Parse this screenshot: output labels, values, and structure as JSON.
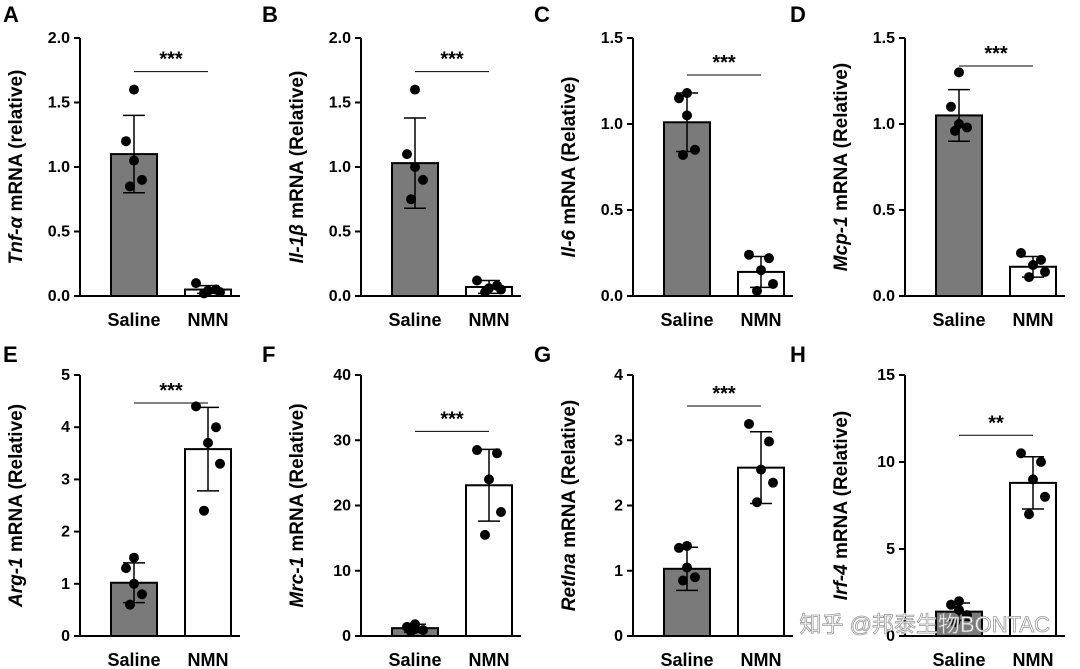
{
  "watermark": "知乎 @邦泰生物BONTAC",
  "colors": {
    "saline_bar": "#7a7a7a",
    "nmn_bar": "#ffffff",
    "stroke": "#000000",
    "dot": "#000000"
  },
  "chart_data": [
    {
      "panel": "A",
      "type": "bar",
      "gene": "Tnf-α",
      "ylabel_suffix": " mRNA (relative)",
      "categories": [
        "Saline",
        "NMN"
      ],
      "values": [
        1.1,
        0.05
      ],
      "error": [
        0.3,
        0.03
      ],
      "points": [
        [
          1.6,
          1.2,
          1.05,
          0.9,
          0.85
        ],
        [
          0.1,
          0.05,
          0.04,
          0.03,
          0.02
        ]
      ],
      "ylim": [
        0,
        2.0
      ],
      "yticks": [
        "0.0",
        "0.5",
        "1.0",
        "1.5",
        "2.0"
      ],
      "significance": "***"
    },
    {
      "panel": "B",
      "type": "bar",
      "gene": "Il-1β",
      "ylabel_suffix": " mRNA (Relative)",
      "categories": [
        "Saline",
        "NMN"
      ],
      "values": [
        1.03,
        0.07
      ],
      "error": [
        0.35,
        0.05
      ],
      "points": [
        [
          1.6,
          1.1,
          1.0,
          0.9,
          0.75
        ],
        [
          0.12,
          0.08,
          0.06,
          0.05,
          0.03
        ]
      ],
      "ylim": [
        0,
        2.0
      ],
      "yticks": [
        "0.0",
        "0.5",
        "1.0",
        "1.5",
        "2.0"
      ],
      "significance": "***"
    },
    {
      "panel": "C",
      "type": "bar",
      "gene": "Il-6",
      "ylabel_suffix": " mRNA (Relative)",
      "categories": [
        "Saline",
        "NMN"
      ],
      "values": [
        1.01,
        0.14
      ],
      "error": [
        0.17,
        0.09
      ],
      "points": [
        [
          1.18,
          1.15,
          1.05,
          0.85,
          0.82
        ],
        [
          0.24,
          0.22,
          0.15,
          0.07,
          0.03
        ]
      ],
      "ylim": [
        0,
        1.5
      ],
      "yticks": [
        "0.0",
        "0.5",
        "1.0",
        "1.5"
      ],
      "significance": "***"
    },
    {
      "panel": "D",
      "type": "bar",
      "gene": "Mcp-1",
      "ylabel_suffix": " mRNA (Relative)",
      "categories": [
        "Saline",
        "NMN"
      ],
      "values": [
        1.05,
        0.17
      ],
      "error": [
        0.15,
        0.06
      ],
      "points": [
        [
          1.3,
          1.1,
          1.0,
          0.98,
          0.96
        ],
        [
          0.25,
          0.21,
          0.18,
          0.14,
          0.11
        ]
      ],
      "ylim": [
        0,
        1.5
      ],
      "yticks": [
        "0.0",
        "0.5",
        "1.0",
        "1.5"
      ],
      "significance": "***"
    },
    {
      "panel": "E",
      "type": "bar",
      "gene": "Arg-1",
      "ylabel_suffix": " mRNA (Relative)",
      "categories": [
        "Saline",
        "NMN"
      ],
      "values": [
        1.02,
        3.58
      ],
      "error": [
        0.38,
        0.8
      ],
      "points": [
        [
          1.5,
          1.3,
          1.0,
          0.8,
          0.6
        ],
        [
          4.4,
          4.0,
          3.7,
          3.3,
          2.4
        ]
      ],
      "ylim": [
        0,
        5
      ],
      "yticks": [
        "0",
        "1",
        "2",
        "3",
        "4",
        "5"
      ],
      "significance": "***"
    },
    {
      "panel": "F",
      "type": "bar",
      "gene": "Mrc-1",
      "ylabel_suffix": " mRNA (Relative)",
      "categories": [
        "Saline",
        "NMN"
      ],
      "values": [
        1.2,
        23.1
      ],
      "error": [
        0.6,
        5.5
      ],
      "points": [
        [
          1.8,
          1.4,
          1.1,
          0.9,
          0.7
        ],
        [
          28.5,
          28.0,
          24.0,
          19.0,
          15.5
        ]
      ],
      "ylim": [
        0,
        40
      ],
      "yticks": [
        "0",
        "10",
        "20",
        "30",
        "40"
      ],
      "significance": "***"
    },
    {
      "panel": "G",
      "type": "bar",
      "gene": "Retlna",
      "ylabel_suffix": " mRNA (Relative)",
      "categories": [
        "Saline",
        "NMN"
      ],
      "values": [
        1.03,
        2.58
      ],
      "error": [
        0.33,
        0.55
      ],
      "points": [
        [
          1.38,
          1.35,
          1.05,
          0.9,
          0.85
        ],
        [
          3.25,
          2.98,
          2.55,
          2.35,
          2.05
        ]
      ],
      "ylim": [
        0,
        4
      ],
      "yticks": [
        "0",
        "1",
        "2",
        "3",
        "4"
      ],
      "significance": "***"
    },
    {
      "panel": "H",
      "type": "bar",
      "gene": "Irf-4",
      "ylabel_suffix": " mRNA (Relative)",
      "categories": [
        "Saline",
        "NMN"
      ],
      "values": [
        1.4,
        8.8
      ],
      "error": [
        0.5,
        1.5
      ],
      "points": [
        [
          2.0,
          1.8,
          1.5,
          1.2,
          0.8
        ],
        [
          10.5,
          10.0,
          9.0,
          8.0,
          7.0
        ]
      ],
      "ylim": [
        0,
        15
      ],
      "yticks": [
        "0",
        "5",
        "10",
        "15"
      ],
      "significance": "**"
    }
  ]
}
